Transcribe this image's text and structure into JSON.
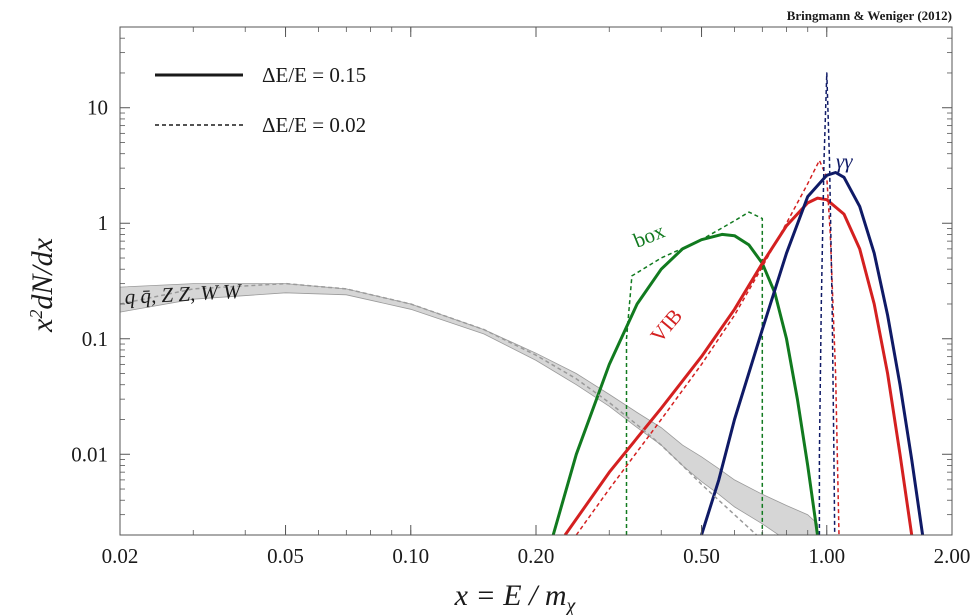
{
  "chart_data": {
    "type": "line",
    "title": "",
    "credit": "Bringmann & Weniger (2012)",
    "xlabel": "x = E / mχ",
    "ylabel": "x²dN/dx",
    "xscale": "log",
    "yscale": "log",
    "xlim": [
      0.02,
      2.0
    ],
    "ylim": [
      0.002,
      50
    ],
    "xticks": [
      0.02,
      0.05,
      0.1,
      0.2,
      0.5,
      1.0,
      2.0
    ],
    "xtick_labels": [
      "0.02",
      "0.05",
      "0.10",
      "0.20",
      "0.50",
      "1.00",
      "2.00"
    ],
    "yticks": [
      0.01,
      0.1,
      1,
      10
    ],
    "ytick_labels": [
      "0.01",
      "0.1",
      "1",
      "10"
    ],
    "grid": false,
    "legend_position": "top-left",
    "legend": [
      {
        "label": "ΔE/E = 0.15",
        "style": "solid"
      },
      {
        "label": "ΔE/E = 0.02",
        "style": "dashed"
      }
    ],
    "colors": {
      "box": "#117a1f",
      "vib": "#d42020",
      "gammagamma": "#0f1a66",
      "band_fill": "#d6d6d6",
      "band_edge": "#9a9a9a"
    },
    "annotations": [
      {
        "text": "q q̄, Z Z, W W",
        "series": "band"
      },
      {
        "text": "box",
        "series": "box"
      },
      {
        "text": "VIB",
        "series": "vib"
      },
      {
        "text": "γγ",
        "series": "gammagamma"
      }
    ],
    "band": {
      "name": "q q̄, Z Z, W W",
      "x": [
        0.02,
        0.03,
        0.05,
        0.07,
        0.1,
        0.15,
        0.2,
        0.25,
        0.3,
        0.35,
        0.4,
        0.45,
        0.5,
        0.55,
        0.6,
        0.7,
        0.8,
        0.9,
        0.95
      ],
      "upper": [
        0.28,
        0.3,
        0.3,
        0.27,
        0.2,
        0.12,
        0.075,
        0.05,
        0.033,
        0.023,
        0.017,
        0.012,
        0.0095,
        0.0075,
        0.006,
        0.0045,
        0.0036,
        0.003,
        0.0025
      ],
      "lower": [
        0.17,
        0.22,
        0.25,
        0.24,
        0.18,
        0.11,
        0.065,
        0.04,
        0.026,
        0.017,
        0.012,
        0.008,
        0.0058,
        0.0045,
        0.0035,
        0.0025,
        0.0018,
        0.0013,
        0.0011
      ]
    },
    "series": [
      {
        "name": "box",
        "color_key": "box",
        "style": "solid",
        "x": [
          0.22,
          0.25,
          0.3,
          0.35,
          0.4,
          0.45,
          0.5,
          0.56,
          0.6,
          0.65,
          0.7,
          0.75,
          0.8,
          0.85,
          0.9,
          0.95
        ],
        "y": [
          0.002,
          0.01,
          0.06,
          0.2,
          0.4,
          0.6,
          0.72,
          0.8,
          0.78,
          0.65,
          0.45,
          0.25,
          0.1,
          0.03,
          0.008,
          0.002
        ]
      },
      {
        "name": "box",
        "color_key": "box",
        "style": "dashed",
        "x": [
          0.33,
          0.33,
          0.34,
          0.4,
          0.5,
          0.6,
          0.65,
          0.7,
          0.7,
          0.7
        ],
        "y": [
          0.002,
          0.1,
          0.35,
          0.5,
          0.72,
          1.05,
          1.25,
          1.1,
          0.5,
          0.002
        ]
      },
      {
        "name": "VIB",
        "color_key": "vib",
        "style": "solid",
        "x": [
          0.235,
          0.3,
          0.4,
          0.5,
          0.6,
          0.7,
          0.8,
          0.9,
          0.95,
          1.0,
          1.1,
          1.2,
          1.3,
          1.4,
          1.5,
          1.6
        ],
        "y": [
          0.002,
          0.007,
          0.025,
          0.07,
          0.18,
          0.45,
          0.95,
          1.5,
          1.65,
          1.6,
          1.2,
          0.6,
          0.2,
          0.05,
          0.01,
          0.002
        ]
      },
      {
        "name": "VIB",
        "color_key": "vib",
        "style": "dashed",
        "x": [
          0.25,
          0.3,
          0.4,
          0.5,
          0.6,
          0.7,
          0.8,
          0.9,
          0.96,
          1.0,
          1.02,
          1.05,
          1.07
        ],
        "y": [
          0.002,
          0.005,
          0.02,
          0.06,
          0.16,
          0.42,
          1.0,
          2.2,
          3.5,
          2.5,
          0.8,
          0.05,
          0.002
        ]
      },
      {
        "name": "γγ",
        "color_key": "gammagamma",
        "style": "solid",
        "x": [
          0.5,
          0.55,
          0.6,
          0.7,
          0.8,
          0.9,
          1.0,
          1.05,
          1.1,
          1.2,
          1.3,
          1.4,
          1.5,
          1.6,
          1.7
        ],
        "y": [
          0.002,
          0.006,
          0.02,
          0.12,
          0.55,
          1.7,
          2.6,
          2.75,
          2.5,
          1.4,
          0.55,
          0.16,
          0.04,
          0.009,
          0.002
        ]
      },
      {
        "name": "γγ",
        "color_key": "gammagamma",
        "style": "dashed",
        "x": [
          0.96,
          0.96,
          0.97,
          0.985,
          1.0,
          1.015,
          1.03,
          1.04,
          1.045
        ],
        "y": [
          0.002,
          0.01,
          0.2,
          3.5,
          20,
          3.5,
          0.2,
          0.01,
          0.002
        ]
      },
      {
        "name": "q q̄, Z Z, W W",
        "color_key": "band_edge",
        "style": "dashed",
        "x": [
          0.02,
          0.03,
          0.05,
          0.07,
          0.1,
          0.15,
          0.2,
          0.25,
          0.3,
          0.35,
          0.4,
          0.45,
          0.5,
          0.6,
          0.7,
          0.75
        ],
        "y": [
          0.2,
          0.27,
          0.3,
          0.27,
          0.2,
          0.12,
          0.072,
          0.045,
          0.028,
          0.018,
          0.012,
          0.008,
          0.0055,
          0.003,
          0.0018,
          0.002
        ]
      }
    ]
  }
}
